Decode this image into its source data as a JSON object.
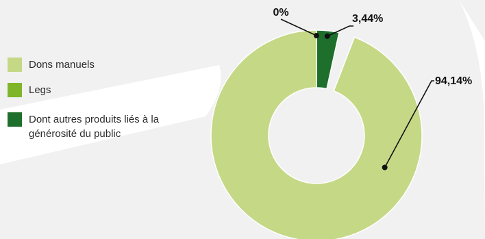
{
  "chart_data": {
    "type": "pie",
    "variant": "donut",
    "categories": [
      "Dons manuels",
      "Legs",
      "Dont autres produits liés à la générosité du public"
    ],
    "values": [
      94.14,
      0,
      3.44
    ],
    "value_labels": [
      "94,14%",
      "0%",
      "3,44%"
    ],
    "title": "",
    "legend": "left",
    "colors": [
      "#c5d886",
      "#7fb52a",
      "#1e6f2c"
    ],
    "hidden_remainder_pct": 2.42
  }
}
